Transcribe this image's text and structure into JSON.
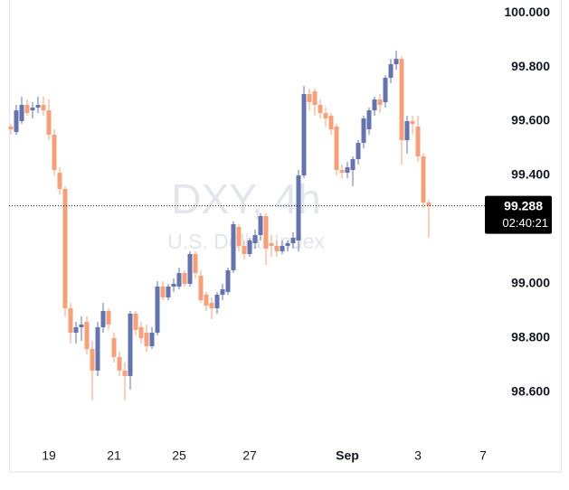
{
  "chart_data": {
    "type": "candlestick",
    "watermark_title": "DXY, 4h",
    "watermark_subtitle": "U.S. Dollar Index",
    "categories": [
      null,
      null,
      null,
      null,
      null,
      null,
      null,
      "19",
      null,
      null,
      null,
      null,
      null,
      null,
      null,
      null,
      null,
      null,
      null,
      "21",
      null,
      null,
      null,
      null,
      null,
      null,
      null,
      null,
      null,
      null,
      null,
      "25",
      null,
      null,
      null,
      null,
      null,
      null,
      null,
      null,
      null,
      null,
      null,
      null,
      "27",
      null,
      null,
      null,
      null,
      null,
      null,
      null,
      null,
      null,
      null,
      null,
      null,
      null,
      null,
      null,
      null,
      null,
      "Sep",
      null,
      null,
      null,
      null,
      null,
      null,
      null,
      null,
      null,
      null,
      null,
      null,
      "3",
      null,
      null,
      null,
      null,
      null,
      null,
      null,
      null,
      null,
      null,
      null,
      "7"
    ],
    "open": [
      99.58,
      99.56,
      99.6,
      99.66,
      99.64,
      99.65,
      99.66,
      99.64,
      99.55,
      99.41,
      99.35,
      98.91,
      98.82,
      98.84,
      98.86,
      98.76,
      98.68,
      98.84,
      98.9,
      98.8,
      98.73,
      98.68,
      98.66,
      98.89,
      98.84,
      98.82,
      98.77,
      98.82,
      98.99,
      98.95,
      98.99,
      98.99,
      99.04,
      99.0,
      99.11,
      99.03,
      98.96,
      98.93,
      98.91,
      98.96,
      98.97,
      99.05,
      99.21,
      99.14,
      99.11,
      99.15,
      99.18,
      99.25,
      99.15,
      99.14,
      99.12,
      99.14,
      99.15,
      99.16,
      99.4,
      99.7,
      99.71,
      99.66,
      99.63,
      99.62,
      99.58,
      99.42,
      99.41,
      99.42,
      99.46,
      99.52,
      99.57,
      99.64,
      99.68,
      99.67,
      99.76,
      99.81,
      99.83,
      99.53,
      99.6,
      99.58,
      99.47,
      99.3,
      null,
      null,
      null,
      null,
      null,
      null,
      null,
      null,
      null,
      null
    ],
    "high": [
      99.59,
      99.66,
      99.69,
      99.68,
      99.67,
      99.69,
      99.69,
      99.68,
      99.57,
      99.43,
      99.36,
      98.93,
      98.86,
      98.88,
      98.88,
      98.79,
      98.86,
      98.93,
      98.91,
      98.82,
      98.75,
      98.71,
      98.9,
      98.9,
      98.86,
      98.85,
      98.84,
      99.01,
      99.01,
      99.0,
      99.02,
      99.06,
      99.05,
      99.12,
      99.12,
      99.05,
      98.97,
      98.95,
      98.97,
      99.0,
      99.06,
      99.23,
      99.22,
      99.16,
      99.17,
      99.2,
      99.26,
      99.26,
      99.18,
      99.16,
      99.16,
      99.16,
      99.19,
      99.42,
      99.73,
      99.72,
      99.72,
      99.68,
      99.65,
      99.63,
      99.59,
      99.44,
      99.45,
      99.47,
      99.53,
      99.62,
      99.65,
      99.69,
      99.7,
      99.77,
      99.83,
      99.86,
      99.84,
      99.62,
      99.62,
      99.62,
      99.48,
      99.31,
      null,
      null,
      null,
      null,
      null,
      null,
      null,
      null,
      null,
      null
    ],
    "low": [
      99.55,
      99.55,
      99.59,
      99.62,
      99.61,
      99.63,
      99.62,
      99.53,
      99.4,
      99.33,
      98.88,
      98.78,
      98.78,
      98.79,
      98.74,
      98.57,
      98.66,
      98.82,
      98.83,
      98.71,
      98.66,
      98.57,
      98.61,
      98.81,
      98.78,
      98.75,
      98.76,
      98.81,
      98.94,
      98.94,
      98.97,
      98.98,
      98.99,
      98.99,
      99.02,
      98.93,
      98.9,
      98.87,
      98.89,
      98.94,
      98.96,
      99.04,
      99.12,
      99.09,
      99.1,
      99.13,
      99.16,
      99.07,
      99.1,
      99.1,
      99.11,
      99.12,
      99.13,
      99.12,
      99.39,
      99.64,
      99.62,
      99.61,
      99.58,
      99.55,
      99.4,
      99.39,
      99.39,
      99.36,
      99.44,
      99.5,
      99.55,
      99.62,
      99.63,
      99.65,
      99.74,
      99.79,
      99.44,
      99.48,
      99.55,
      99.45,
      99.28,
      99.17,
      null,
      null,
      null,
      null,
      null,
      null,
      null,
      null,
      null,
      null
    ],
    "close": [
      99.57,
      99.64,
      99.66,
      99.63,
      99.65,
      99.66,
      99.64,
      99.55,
      99.42,
      99.35,
      98.91,
      98.82,
      98.84,
      98.85,
      98.76,
      98.68,
      98.84,
      98.9,
      98.85,
      98.73,
      98.68,
      98.66,
      98.89,
      98.83,
      98.8,
      98.77,
      98.82,
      98.99,
      98.95,
      98.99,
      99.0,
      99.04,
      99.0,
      99.11,
      99.04,
      98.94,
      98.92,
      98.91,
      98.96,
      98.98,
      99.05,
      99.22,
      99.14,
      99.11,
      99.16,
      99.18,
      99.25,
      99.13,
      99.14,
      99.12,
      99.14,
      99.15,
      99.17,
      99.4,
      99.7,
      99.67,
      99.66,
      99.63,
      99.61,
      99.57,
      99.42,
      99.41,
      99.43,
      99.46,
      99.52,
      99.61,
      99.64,
      99.68,
      99.66,
      99.76,
      99.81,
      99.83,
      99.53,
      99.6,
      99.59,
      99.47,
      99.3,
      99.288,
      null,
      null,
      null,
      null,
      null,
      null,
      null,
      null,
      null,
      null
    ],
    "up_color": "#6473ad",
    "down_color": "#f5a07a",
    "ylim": [
      98.413,
      100.047
    ],
    "yticks": [
      {
        "value": 100,
        "label": "100.000"
      },
      {
        "value": 99.8,
        "label": "99.800"
      },
      {
        "value": 99.6,
        "label": "99.600"
      },
      {
        "value": 99.4,
        "label": "99.400"
      },
      {
        "value": 99,
        "label": "99.000"
      },
      {
        "value": 98.8,
        "label": "98.800"
      },
      {
        "value": 98.6,
        "label": "98.600"
      }
    ],
    "current_price": 99.288,
    "countdown": "02:40:21"
  }
}
